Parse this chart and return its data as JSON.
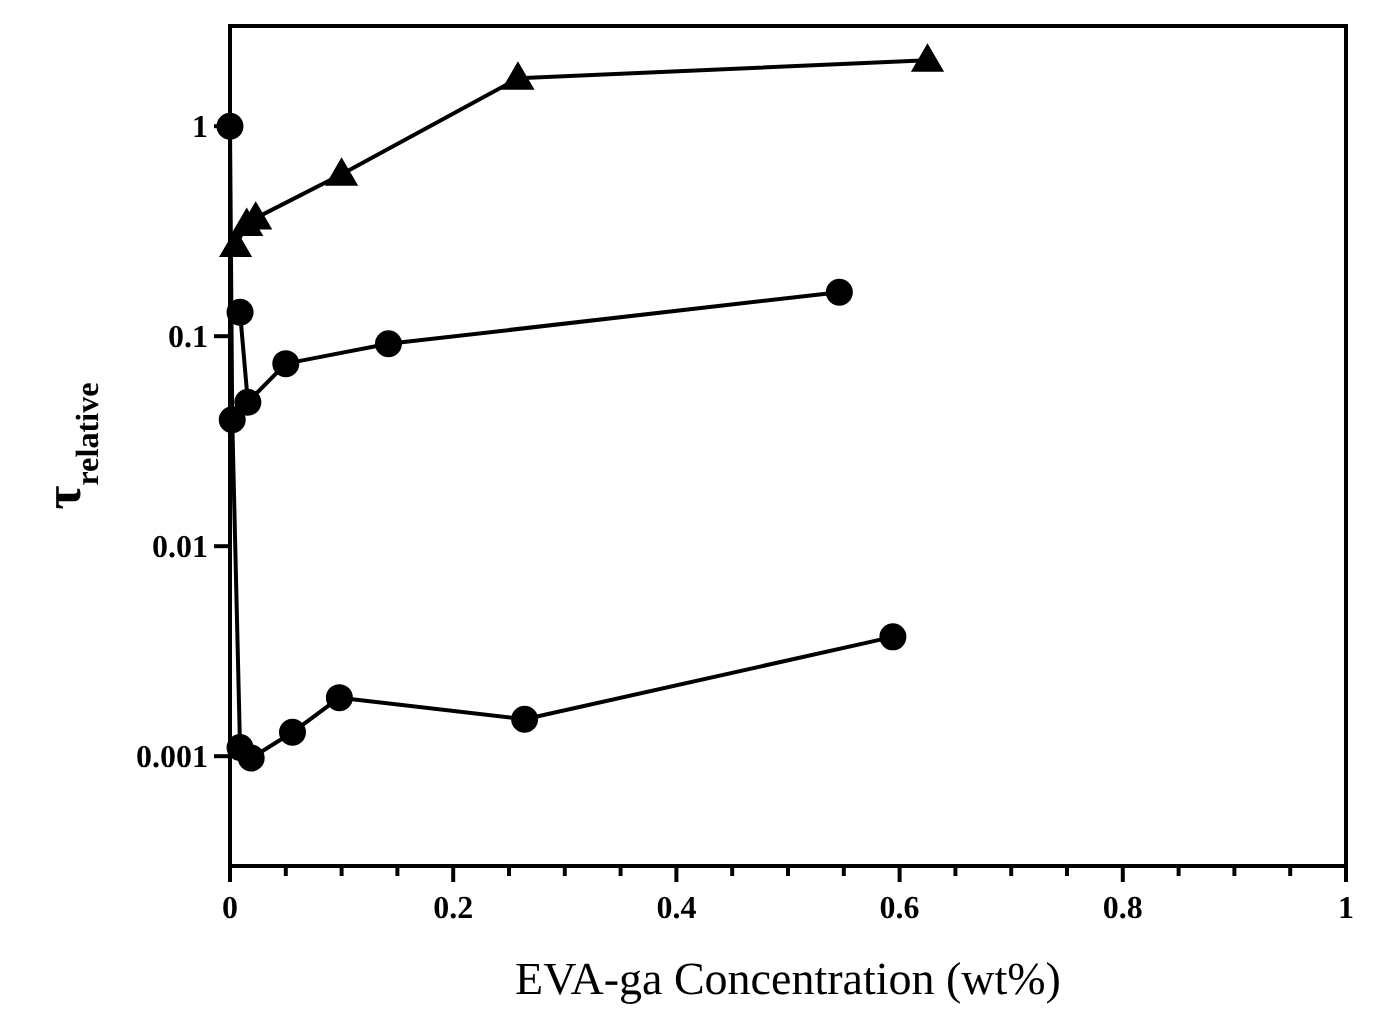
{
  "chart_data": {
    "type": "line",
    "xlabel": "EVA-ga Concentration (wt%)",
    "ylabel": "τ$_{relative}$",
    "log": "y",
    "xlim": [
      0,
      1
    ],
    "ylim": [
      0.0003,
      3
    ],
    "xticks": [
      0,
      {
        "value": 0.05,
        "label": null
      },
      {
        "value": 0.1,
        "label": null
      },
      {
        "value": 0.15,
        "label": null
      },
      0.2,
      {
        "value": 0.25,
        "label": null
      },
      {
        "value": 0.3,
        "label": null
      },
      {
        "value": 0.35,
        "label": null
      },
      0.4,
      {
        "value": 0.45,
        "label": null
      },
      {
        "value": 0.5,
        "label": null
      },
      {
        "value": 0.55,
        "label": null
      },
      0.6,
      {
        "value": 0.65,
        "label": null
      },
      {
        "value": 0.7,
        "label": null
      },
      {
        "value": 0.75,
        "label": null
      },
      0.8,
      {
        "value": 0.85,
        "label": null
      },
      {
        "value": 0.9,
        "label": null
      },
      {
        "value": 0.95,
        "label": null
      },
      1
    ],
    "yticks": [
      0.001,
      0.01,
      0.1,
      1
    ],
    "grid": false,
    "line_style": "solid",
    "series": [
      {
        "color": "#000000",
        "marker": "triangle",
        "x": [
          0.005,
          0.015,
          0.023,
          0.1,
          0.258,
          0.625
        ],
        "values": [
          0.27,
          0.34,
          0.365,
          0.59,
          1.69,
          2.06
        ]
      },
      {
        "color": "#000000",
        "marker": "circle",
        "x": [
          0.009,
          0.016,
          0.05,
          0.142,
          0.546
        ],
        "values": [
          0.13,
          0.0485,
          0.074,
          0.092,
          0.162
        ]
      },
      {
        "color": "#000000",
        "marker": "circle",
        "x": [
          0,
          0.002,
          0.009,
          0.019,
          0.056,
          0.098,
          0.264,
          0.594
        ],
        "values": [
          1,
          0.04,
          0.0011,
          0.00098,
          0.0013,
          0.0019,
          0.0015,
          0.0037
        ]
      }
    ]
  }
}
